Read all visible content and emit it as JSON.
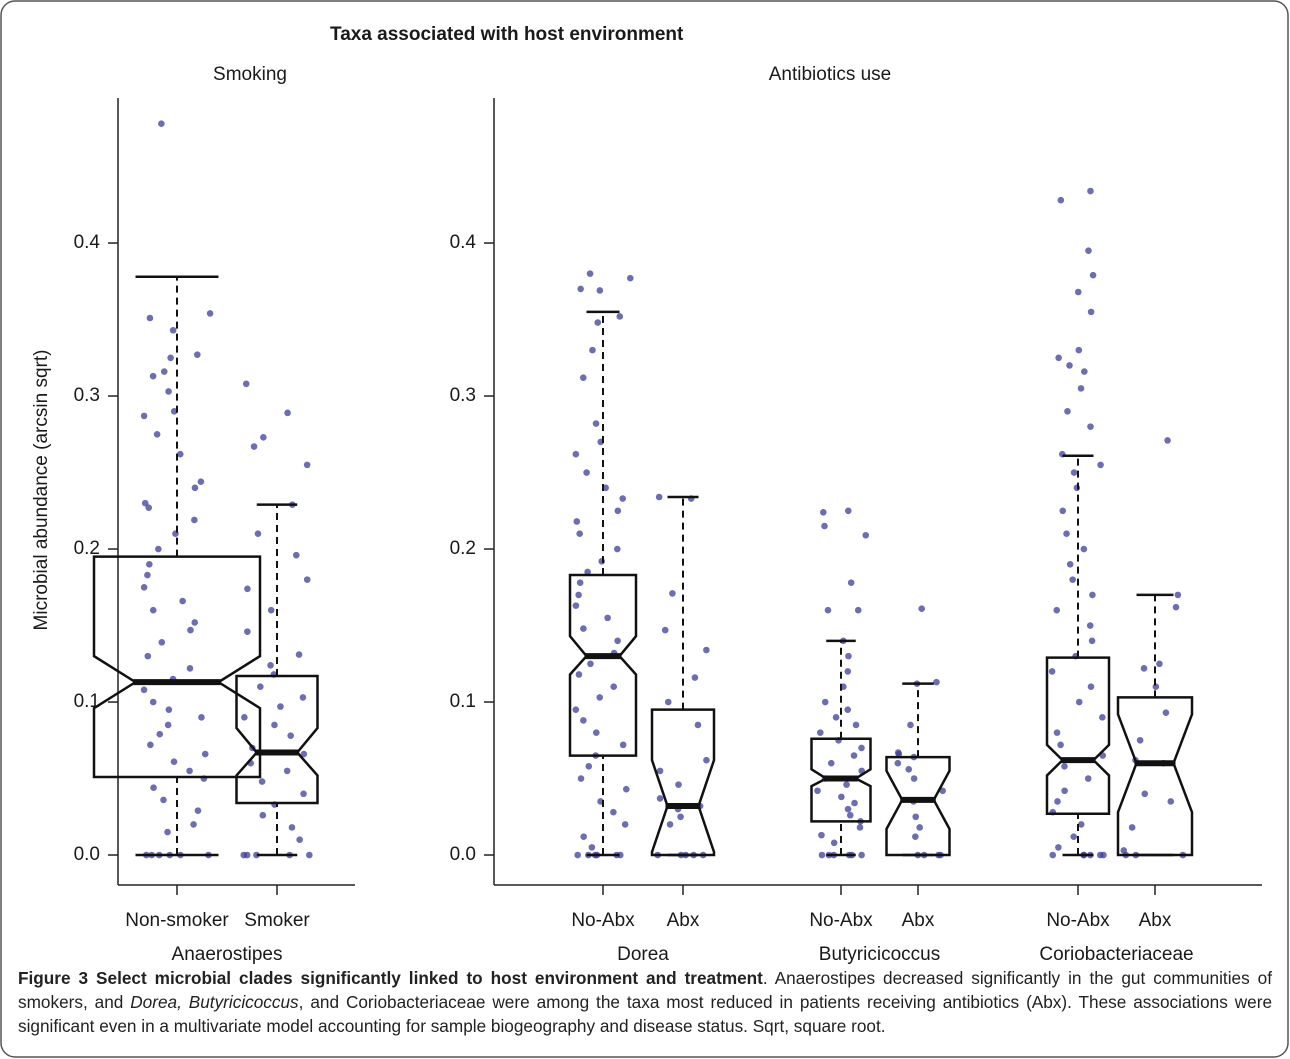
{
  "chart_data": {
    "type": "boxplot",
    "title": "Taxa associated with host environment",
    "y_label": "Microbial abundance (arcsin sqrt)",
    "ylim": [
      -0.0196,
      0.4948
    ],
    "yticks": [
      {
        "value": 0,
        "label": "0.0"
      },
      {
        "value": 0.1,
        "label": "0.1"
      },
      {
        "value": 0.2,
        "label": "0.2"
      },
      {
        "value": 0.3,
        "label": "0.3"
      },
      {
        "value": 0.4,
        "label": "0.4"
      }
    ],
    "point_color": "#3c3c9c",
    "panels": [
      {
        "title": "Smoking",
        "groups": [
          {
            "name": "Anaerostipes",
            "boxes": [
              {
                "category": "Non-smoker",
                "whislo": 0,
                "q1": 0.051,
                "med": 0.113,
                "q3": 0.195,
                "whishi": 0.378,
                "notch": [
                  0.096,
                  0.13
                ],
                "points": [
                  0.478,
                  0.354,
                  0.351,
                  0.343,
                  0.327,
                  0.325,
                  0.316,
                  0.313,
                  0.303,
                  0.29,
                  0.287,
                  0.275,
                  0.262,
                  0.244,
                  0.24,
                  0.23,
                  0.227,
                  0.219,
                  0.21,
                  0.2,
                  0.19,
                  0.183,
                  0.175,
                  0.166,
                  0.16,
                  0.152,
                  0.147,
                  0.139,
                  0.13,
                  0.122,
                  0.115,
                  0.108,
                  0.1,
                  0.095,
                  0.09,
                  0.085,
                  0.079,
                  0.072,
                  0.066,
                  0.061,
                  0.055,
                  0.05,
                  0.044,
                  0.036,
                  0.029,
                  0.02,
                  0.015,
                  0,
                  0,
                  0,
                  0,
                  0,
                  0
                ]
              },
              {
                "category": "Smoker",
                "whislo": 0,
                "q1": 0.034,
                "med": 0.067,
                "q3": 0.117,
                "whishi": 0.229,
                "notch": [
                  0.052,
                  0.083
                ],
                "points": [
                  0.308,
                  0.289,
                  0.273,
                  0.267,
                  0.255,
                  0.229,
                  0.21,
                  0.196,
                  0.18,
                  0.174,
                  0.16,
                  0.146,
                  0.131,
                  0.124,
                  0.118,
                  0.11,
                  0.103,
                  0.097,
                  0.09,
                  0.085,
                  0.078,
                  0.07,
                  0.066,
                  0.06,
                  0.055,
                  0.048,
                  0.04,
                  0.033,
                  0.026,
                  0.018,
                  0.01,
                  0,
                  0,
                  0,
                  0,
                  0
                ]
              }
            ]
          }
        ]
      },
      {
        "title": "Antibiotics use",
        "groups": [
          {
            "name": "Dorea",
            "boxes": [
              {
                "category": "No-Abx",
                "whislo": 0,
                "q1": 0.065,
                "med": 0.13,
                "q3": 0.183,
                "whishi": 0.355,
                "notch": [
                  0.118,
                  0.143
                ],
                "points": [
                  0.38,
                  0.377,
                  0.37,
                  0.369,
                  0.352,
                  0.348,
                  0.33,
                  0.312,
                  0.282,
                  0.27,
                  0.262,
                  0.25,
                  0.24,
                  0.233,
                  0.225,
                  0.218,
                  0.21,
                  0.2,
                  0.192,
                  0.185,
                  0.178,
                  0.17,
                  0.163,
                  0.155,
                  0.148,
                  0.14,
                  0.132,
                  0.125,
                  0.118,
                  0.11,
                  0.103,
                  0.095,
                  0.088,
                  0.08,
                  0.072,
                  0.065,
                  0.058,
                  0.05,
                  0.043,
                  0.035,
                  0.028,
                  0.02,
                  0.012,
                  0.005,
                  0,
                  0,
                  0,
                  0,
                  0,
                  0
                ]
              },
              {
                "category": "Abx",
                "whislo": 0,
                "q1": 0,
                "med": 0.032,
                "q3": 0.095,
                "whishi": 0.234,
                "notch": [
                  0.002,
                  0.062
                ],
                "points": [
                  0.234,
                  0.233,
                  0.171,
                  0.147,
                  0.134,
                  0.116,
                  0.1,
                  0.085,
                  0.062,
                  0.055,
                  0.046,
                  0.037,
                  0.032,
                  0.03,
                  0.025,
                  0.02,
                  0,
                  0,
                  0,
                  0,
                  0
                ]
              }
            ]
          },
          {
            "name": "Butyricicoccus",
            "boxes": [
              {
                "category": "No-Abx",
                "whislo": 0,
                "q1": 0.022,
                "med": 0.05,
                "q3": 0.076,
                "whishi": 0.14,
                "notch": [
                  0.045,
                  0.056
                ],
                "points": [
                  0.225,
                  0.224,
                  0.215,
                  0.209,
                  0.178,
                  0.16,
                  0.16,
                  0.14,
                  0.13,
                  0.12,
                  0.11,
                  0.1,
                  0.095,
                  0.09,
                  0.085,
                  0.08,
                  0.075,
                  0.07,
                  0.065,
                  0.06,
                  0.055,
                  0.05,
                  0.046,
                  0.042,
                  0.038,
                  0.034,
                  0.03,
                  0.026,
                  0.022,
                  0.018,
                  0.013,
                  0.008,
                  0,
                  0,
                  0,
                  0,
                  0,
                  0
                ]
              },
              {
                "category": "Abx",
                "whislo": 0,
                "q1": 0,
                "med": 0.036,
                "q3": 0.064,
                "whishi": 0.112,
                "notch": [
                  0.017,
                  0.055
                ],
                "points": [
                  0.161,
                  0.113,
                  0.112,
                  0.085,
                  0.067,
                  0.066,
                  0.064,
                  0.06,
                  0.056,
                  0.05,
                  0.042,
                  0.035,
                  0.025,
                  0.018,
                  0.012,
                  0,
                  0,
                  0,
                  0
                ]
              }
            ]
          },
          {
            "name": "Coriobacteriaceae",
            "boxes": [
              {
                "category": "No-Abx",
                "whislo": 0,
                "q1": 0.027,
                "med": 0.062,
                "q3": 0.129,
                "whishi": 0.261,
                "notch": [
                  0.052,
                  0.072
                ],
                "points": [
                  0.434,
                  0.428,
                  0.395,
                  0.379,
                  0.368,
                  0.355,
                  0.33,
                  0.325,
                  0.32,
                  0.316,
                  0.305,
                  0.29,
                  0.28,
                  0.262,
                  0.255,
                  0.25,
                  0.24,
                  0.225,
                  0.21,
                  0.2,
                  0.19,
                  0.18,
                  0.17,
                  0.16,
                  0.15,
                  0.14,
                  0.13,
                  0.12,
                  0.11,
                  0.1,
                  0.09,
                  0.08,
                  0.072,
                  0.065,
                  0.058,
                  0.05,
                  0.042,
                  0.035,
                  0.028,
                  0.02,
                  0.012,
                  0.005,
                  0,
                  0,
                  0,
                  0,
                  0,
                  0
                ]
              },
              {
                "category": "Abx",
                "whislo": 0,
                "q1": 0,
                "med": 0.06,
                "q3": 0.103,
                "whishi": 0.17,
                "notch": [
                  0.028,
                  0.092
                ],
                "points": [
                  0.271,
                  0.17,
                  0.162,
                  0.125,
                  0.122,
                  0.11,
                  0.093,
                  0.075,
                  0.062,
                  0.06,
                  0.04,
                  0.035,
                  0.018,
                  0.003,
                  0,
                  0,
                  0
                ]
              }
            ]
          }
        ]
      }
    ]
  },
  "caption": {
    "label": "Figure 3 Select microbial clades significantly linked to host environment and treatment",
    "text_before": ". Anaerostipes decreased significantly in the gut communities of smokers, and ",
    "text_italic": "Dorea, Butyricicoccus",
    "text_after": ", and Coriobacteriaceae were among the taxa most reduced in patients receiving antibiotics (Abx). These associations were significant even in a multivariate model accounting for sample biogeography and disease status. Sqrt, square root."
  }
}
